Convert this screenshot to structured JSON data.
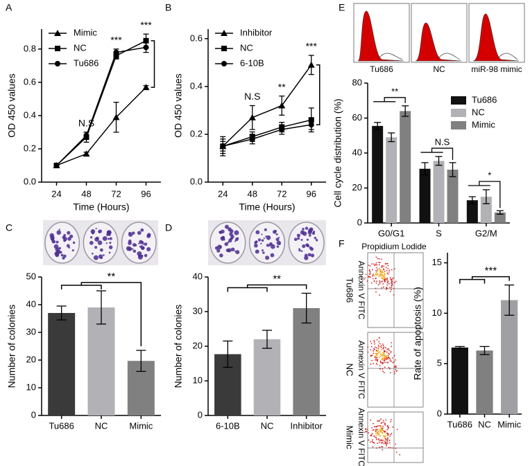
{
  "chart_data": [
    {
      "type": "line",
      "label": "A",
      "xlabel": "Time (Hours)",
      "ylabel": "OD 450 values",
      "x": [
        24,
        48,
        72,
        96
      ],
      "xlim": [
        12,
        108
      ],
      "xticks": [
        24,
        48,
        72,
        96
      ],
      "ylim": [
        0,
        0.92
      ],
      "yticks": [
        {
          "value": 0,
          "label": "0.0"
        },
        0.2,
        0.4,
        0.6,
        0.8
      ],
      "annotations": [
        null,
        "N.S",
        "***",
        "***"
      ],
      "series": [
        {
          "name": "Mimic",
          "color": "#000000",
          "marker": "triangle",
          "values": [
            0.1,
            0.17,
            0.39,
            0.57
          ],
          "errors": [
            0.01,
            0.01,
            0.09,
            0.01
          ]
        },
        {
          "name": "NC",
          "color": "#000000",
          "marker": "square",
          "values": [
            0.1,
            0.27,
            0.76,
            0.85
          ],
          "errors": [
            0.01,
            0.03,
            0.02,
            0.04
          ]
        },
        {
          "name": "Tu686",
          "color": "#000000",
          "marker": "circle",
          "values": [
            0.1,
            0.28,
            0.78,
            0.81
          ],
          "errors": [
            0.01,
            0.02,
            0.02,
            0.03
          ]
        }
      ]
    },
    {
      "type": "line",
      "label": "B",
      "xlabel": "Time (Hours)",
      "ylabel": "OD 450 values",
      "x": [
        24,
        48,
        72,
        96
      ],
      "xlim": [
        12,
        108
      ],
      "xticks": [
        24,
        48,
        72,
        96
      ],
      "ylim": [
        0,
        0.64
      ],
      "yticks": [
        {
          "value": 0,
          "label": "0.0"
        },
        0.2,
        0.4,
        0.6
      ],
      "annotations": [
        null,
        "N.S",
        "**",
        "***"
      ],
      "series": [
        {
          "name": "Inhibitor",
          "color": "#000000",
          "marker": "triangle",
          "values": [
            0.15,
            0.27,
            0.32,
            0.49
          ],
          "errors": [
            0.04,
            0.05,
            0.04,
            0.04
          ]
        },
        {
          "name": "NC",
          "color": "#000000",
          "marker": "square",
          "values": [
            0.15,
            0.19,
            0.23,
            0.26
          ],
          "errors": [
            0.03,
            0.02,
            0.02,
            0.05
          ]
        },
        {
          "name": "6-10B",
          "color": "#000000",
          "marker": "circle",
          "values": [
            0.15,
            0.18,
            0.22,
            0.24
          ],
          "errors": [
            0.02,
            0.02,
            0.02,
            0.02
          ]
        }
      ]
    },
    {
      "type": "bar",
      "label": "C",
      "ylabel": "Number of colonies",
      "categories": [
        "Tu686",
        "NC",
        "Mimic"
      ],
      "values": [
        37,
        39,
        19.7
      ],
      "errors": [
        2.5,
        6,
        3.8
      ],
      "colors": [
        "#3a3a3a",
        "#b2b2b6",
        "#808080"
      ],
      "ylim": [
        0,
        50
      ],
      "yticks": [
        0,
        10,
        20,
        30,
        40,
        50
      ],
      "annotations": [
        "**"
      ]
    },
    {
      "type": "bar",
      "label": "D",
      "ylabel": "Number of colonies",
      "categories": [
        "6-10B",
        "NC",
        "Inhibitor"
      ],
      "values": [
        17.7,
        22,
        31
      ],
      "errors": [
        3.8,
        2.6,
        4.3
      ],
      "colors": [
        "#3a3a3a",
        "#b2b2b6",
        "#808080"
      ],
      "ylim": [
        0,
        40
      ],
      "yticks": [
        0,
        10,
        20,
        30,
        40
      ],
      "annotations": [
        "**"
      ]
    },
    {
      "type": "grouped-bar",
      "label": "E",
      "ylabel": "Cell cycle distribution (%)",
      "image_labels": [
        "Tu686",
        "NC",
        "miR-98 mimic"
      ],
      "categories": [
        "G0/G1",
        "S",
        "G2/M"
      ],
      "ylim": [
        0,
        80
      ],
      "yticks": [
        0,
        20,
        40,
        60,
        80
      ],
      "annotations": [
        "**",
        "N.S",
        "*"
      ],
      "series": [
        {
          "name": "Tu686",
          "color": "#111111",
          "values": [
            55.5,
            31,
            13
          ],
          "errors": [
            2,
            3.5,
            2
          ]
        },
        {
          "name": "NC",
          "color": "#b2b2b6",
          "values": [
            49,
            35.5,
            15
          ],
          "errors": [
            2.5,
            2.5,
            4
          ]
        },
        {
          "name": "Mimic",
          "color": "#808080",
          "values": [
            64,
            30.5,
            6
          ],
          "errors": [
            3,
            4,
            1
          ]
        }
      ]
    },
    {
      "type": "bar",
      "label": "F",
      "ylabel": "Rate of apoptosis (%)",
      "flow_x_label": "Propidium Lodide",
      "flow_y_label": "Annexin V FITC",
      "flow_rows": [
        "Tu686",
        "NC",
        "Mimic"
      ],
      "categories": [
        "Tu686",
        "NC",
        "Mimic"
      ],
      "values": [
        6.6,
        6.3,
        11.3
      ],
      "errors": [
        0.1,
        0.4,
        1.5
      ],
      "colors": [
        "#111111",
        "#808080",
        "#a0a0a4"
      ],
      "ylim": [
        0,
        16
      ],
      "yticks": [
        0,
        5,
        10,
        15
      ],
      "annotations": [
        "***"
      ]
    }
  ]
}
